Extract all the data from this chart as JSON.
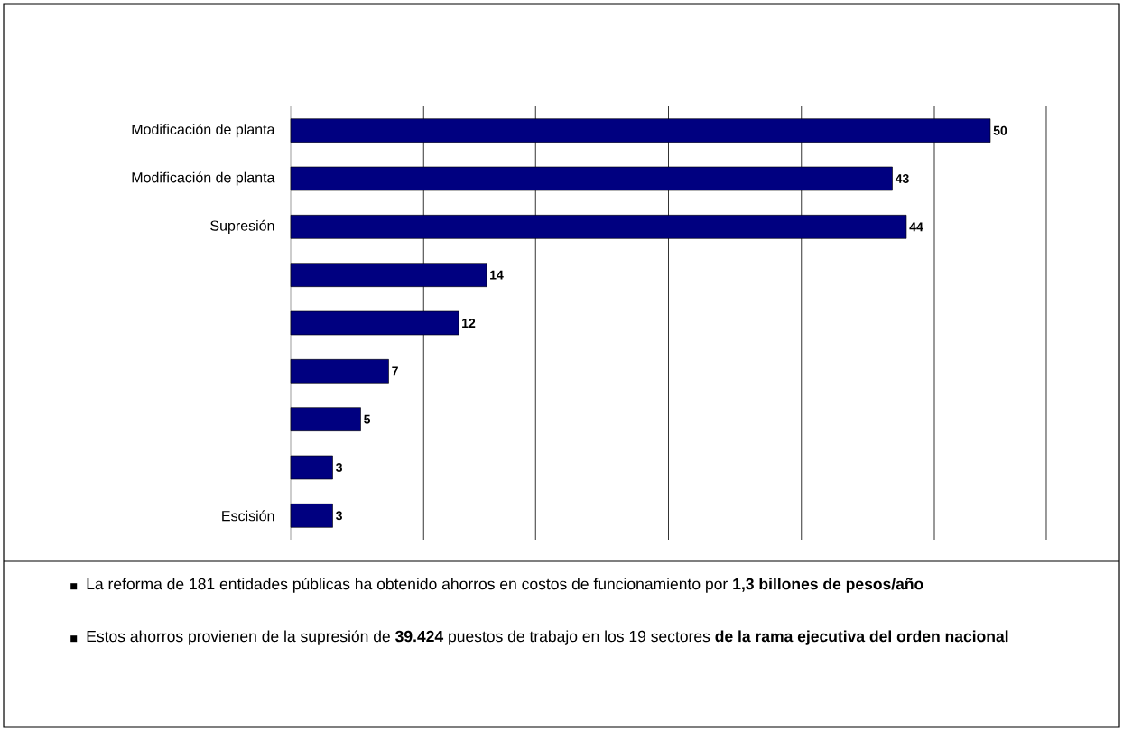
{
  "chart_data": {
    "type": "bar",
    "orientation": "horizontal",
    "categories": [
      "Modificación de planta",
      "Modificación de planta",
      "Supresión",
      null,
      null,
      null,
      null,
      null,
      "Escisión"
    ],
    "values": [
      50,
      43,
      44,
      14,
      12,
      7,
      5,
      3,
      3
    ],
    "color": "#000080",
    "data_labels": true,
    "grid": "x",
    "tick_labels": "y",
    "xlim": [
      0,
      54
    ],
    "xticks": [
      {
        "value": 9.5,
        "label": null
      },
      {
        "value": 17.5,
        "label": null
      },
      {
        "value": 27,
        "label": null
      },
      {
        "value": 36.5,
        "label": null
      },
      {
        "value": 46,
        "label": null
      },
      {
        "value": 54,
        "label": null
      }
    ],
    "annotations": [
      "La reforma de 181 entidades públicas ha obtenido ahorros en costos de funcionamiento por **1,3 billones de pesos/año**",
      "Estos ahorros provienen de la supresión de **39.424** puestos de trabajo en los 19 sectores **de la rama ejecutiva del orden nacional**"
    ]
  }
}
